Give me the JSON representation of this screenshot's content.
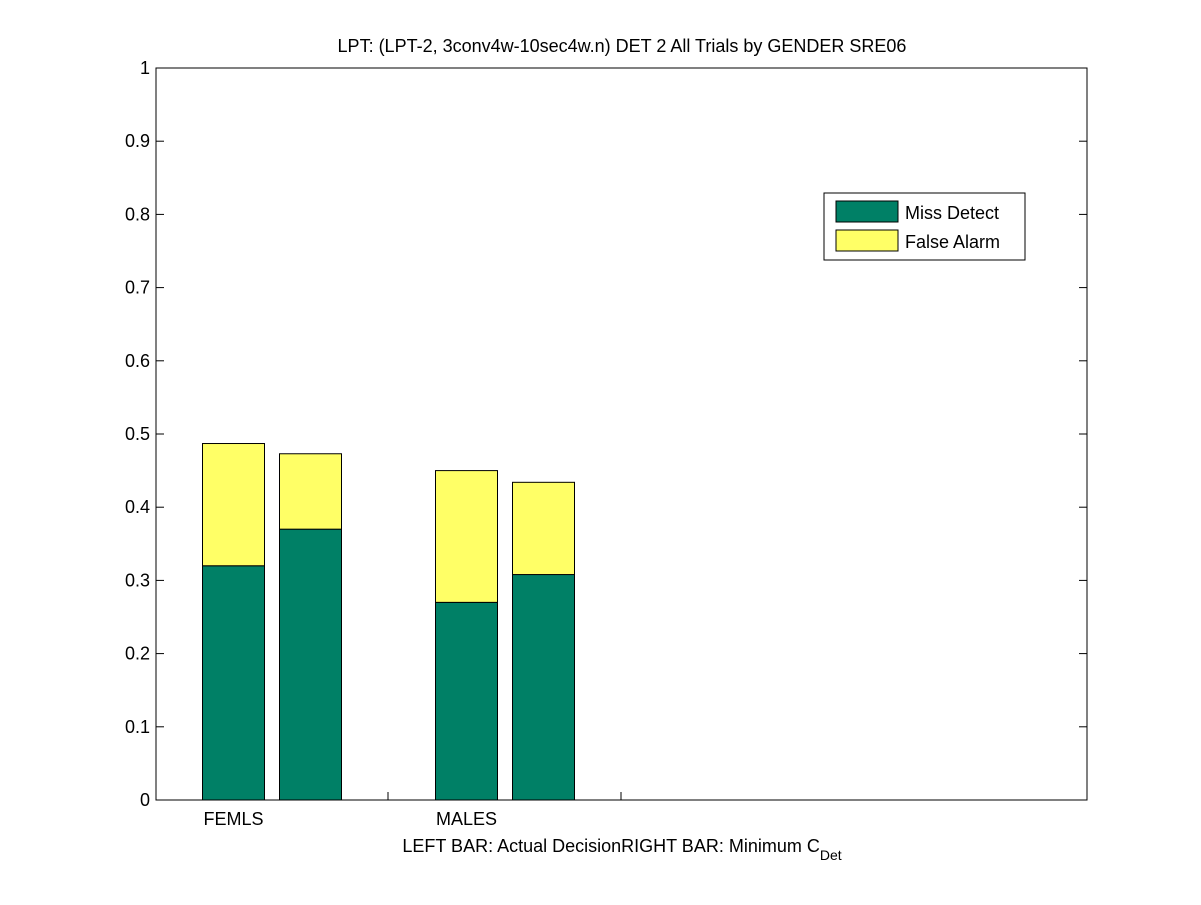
{
  "chart_data": {
    "type": "bar",
    "stacked": true,
    "title": "LPT: (LPT-2, 3conv4w-10sec4w.n) DET 2 All Trials by GENDER SRE06",
    "categories": [
      "FEMLS",
      "MALES"
    ],
    "bars_per_category": [
      "Actual Decision",
      "Minimum C_Det"
    ],
    "series": [
      {
        "name": "Miss Detect",
        "color": "#008066",
        "values": [
          [
            0.32,
            0.37
          ],
          [
            0.27,
            0.308
          ]
        ]
      },
      {
        "name": "False Alarm",
        "color": "#ffff66",
        "values": [
          [
            0.167,
            0.103
          ],
          [
            0.18,
            0.126
          ]
        ]
      }
    ],
    "xlabel": {
      "left_part": "LEFT BAR: Actual Decision",
      "right_part_main": "RIGHT BAR: Minimum C",
      "right_part_subscript": "Det"
    },
    "ylabel": "",
    "ylim": [
      0,
      1
    ],
    "yticks": [
      "0",
      "0.1",
      "0.2",
      "0.3",
      "0.4",
      "0.5",
      "0.6",
      "0.7",
      "0.8",
      "0.9",
      "1"
    ],
    "grid": false,
    "legend_position": "top-right"
  }
}
